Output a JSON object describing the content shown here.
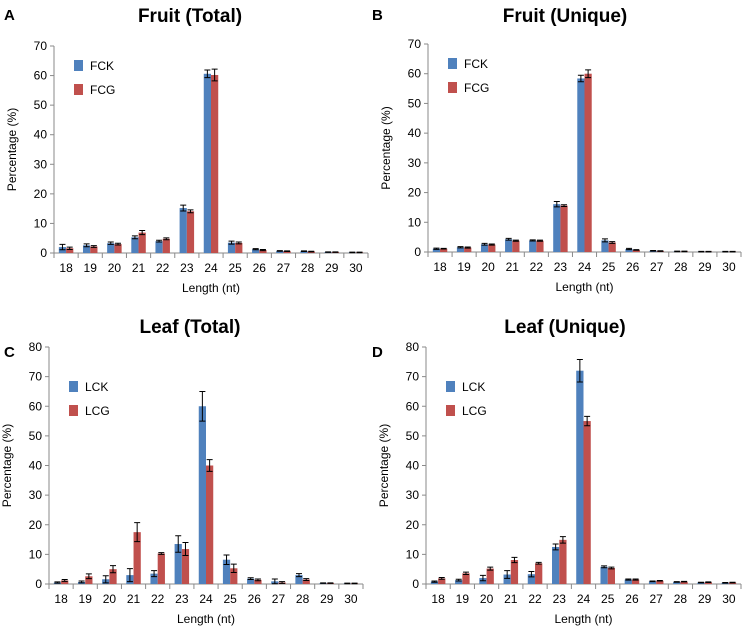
{
  "chart_data": [
    {
      "letter": "A",
      "type": "bar",
      "title": "Fruit (Total)",
      "xlabel": "Length (nt)",
      "ylabel": "Percentage (%)",
      "ylim": [
        0,
        70
      ],
      "yticks": [
        0,
        10,
        20,
        30,
        40,
        50,
        60,
        70
      ],
      "categories": [
        "18",
        "19",
        "20",
        "21",
        "22",
        "23",
        "24",
        "25",
        "26",
        "27",
        "28",
        "29",
        "30"
      ],
      "legend_position": "top-left",
      "series": [
        {
          "name": "FCK",
          "color": "#4f81bd",
          "values": [
            2.0,
            2.6,
            3.3,
            5.3,
            4.0,
            15.2,
            60.6,
            3.5,
            1.3,
            0.7,
            0.6,
            0.3,
            0.2
          ],
          "errors": [
            0.9,
            0.5,
            0.4,
            0.5,
            0.3,
            1.0,
            1.3,
            0.5,
            0.2,
            0.1,
            0.1,
            0.1,
            0.1
          ]
        },
        {
          "name": "FCG",
          "color": "#c0504d",
          "values": [
            1.6,
            2.2,
            3.0,
            6.9,
            4.8,
            14.1,
            60.2,
            3.4,
            1.0,
            0.6,
            0.5,
            0.3,
            0.2
          ],
          "errors": [
            0.4,
            0.3,
            0.3,
            0.7,
            0.3,
            0.5,
            2.0,
            0.3,
            0.2,
            0.1,
            0.1,
            0.1,
            0.1
          ]
        }
      ]
    },
    {
      "letter": "B",
      "type": "bar",
      "title": "Fruit (Unique)",
      "xlabel": "Length (nt)",
      "ylabel": "Percentage (%)",
      "ylim": [
        0,
        70
      ],
      "yticks": [
        0,
        10,
        20,
        30,
        40,
        50,
        60,
        70
      ],
      "categories": [
        "18",
        "19",
        "20",
        "21",
        "22",
        "23",
        "24",
        "25",
        "26",
        "27",
        "28",
        "29",
        "30"
      ],
      "legend_position": "top-left",
      "series": [
        {
          "name": "FCK",
          "color": "#4f81bd",
          "values": [
            1.1,
            1.6,
            2.6,
            4.3,
            3.9,
            16.1,
            58.4,
            3.9,
            1.0,
            0.4,
            0.2,
            0.1,
            0.1
          ],
          "errors": [
            0.2,
            0.2,
            0.3,
            0.3,
            0.2,
            0.9,
            1.1,
            0.5,
            0.2,
            0.1,
            0.1,
            0.1,
            0.1
          ]
        },
        {
          "name": "FCG",
          "color": "#c0504d",
          "values": [
            1.1,
            1.5,
            2.5,
            3.8,
            3.8,
            15.6,
            60.0,
            3.2,
            0.7,
            0.3,
            0.2,
            0.1,
            0.1
          ],
          "errors": [
            0.1,
            0.2,
            0.2,
            0.2,
            0.2,
            0.3,
            1.3,
            0.3,
            0.1,
            0.1,
            0.1,
            0.1,
            0.1
          ]
        }
      ]
    },
    {
      "letter": "C",
      "type": "bar",
      "title": "Leaf (Total)",
      "xlabel": "Length (nt)",
      "ylabel": "Percentage (%)",
      "ylim": [
        0,
        80
      ],
      "yticks": [
        0,
        10,
        20,
        30,
        40,
        50,
        60,
        70,
        80
      ],
      "categories": [
        "18",
        "19",
        "20",
        "21",
        "22",
        "23",
        "24",
        "25",
        "26",
        "27",
        "28",
        "29",
        "30"
      ],
      "legend_position": "top-left",
      "series": [
        {
          "name": "LCK",
          "color": "#4f81bd",
          "values": [
            0.5,
            0.7,
            1.6,
            3.0,
            3.5,
            13.5,
            60.0,
            8.2,
            1.8,
            0.9,
            3.0,
            0.3,
            0.2
          ],
          "errors": [
            0.2,
            0.3,
            1.2,
            2.2,
            1.0,
            2.8,
            5.0,
            1.6,
            0.3,
            0.8,
            0.5,
            0.1,
            0.1
          ]
        },
        {
          "name": "LCG",
          "color": "#c0504d",
          "values": [
            1.2,
            2.6,
            5.0,
            17.5,
            10.3,
            11.8,
            40.0,
            5.3,
            1.4,
            0.5,
            1.5,
            0.3,
            0.2
          ],
          "errors": [
            0.3,
            0.8,
            1.2,
            3.2,
            0.3,
            2.2,
            2.0,
            1.4,
            0.3,
            0.3,
            0.3,
            0.1,
            0.1
          ]
        }
      ]
    },
    {
      "letter": "D",
      "type": "bar",
      "title": "Leaf (Unique)",
      "xlabel": "Length (nt)",
      "ylabel": "Percentage (%)",
      "ylim": [
        0,
        80
      ],
      "yticks": [
        0,
        10,
        20,
        30,
        40,
        50,
        60,
        70,
        80
      ],
      "categories": [
        "18",
        "19",
        "20",
        "21",
        "22",
        "23",
        "24",
        "25",
        "26",
        "27",
        "28",
        "29",
        "30"
      ],
      "legend_position": "top-left",
      "series": [
        {
          "name": "LCK",
          "color": "#4f81bd",
          "values": [
            0.8,
            1.3,
            2.0,
            3.2,
            3.3,
            12.5,
            72.0,
            5.8,
            1.5,
            0.9,
            0.7,
            0.5,
            0.4
          ],
          "errors": [
            0.2,
            0.3,
            0.9,
            1.3,
            0.9,
            1.0,
            3.8,
            0.3,
            0.2,
            0.1,
            0.1,
            0.1,
            0.1
          ]
        },
        {
          "name": "LCG",
          "color": "#c0504d",
          "values": [
            1.9,
            3.6,
            5.2,
            8.1,
            7.0,
            14.9,
            55.0,
            5.4,
            1.5,
            1.1,
            0.8,
            0.6,
            0.5
          ],
          "errors": [
            0.3,
            0.4,
            0.5,
            0.9,
            0.3,
            1.1,
            1.6,
            0.3,
            0.2,
            0.1,
            0.1,
            0.1,
            0.1
          ]
        }
      ]
    }
  ]
}
